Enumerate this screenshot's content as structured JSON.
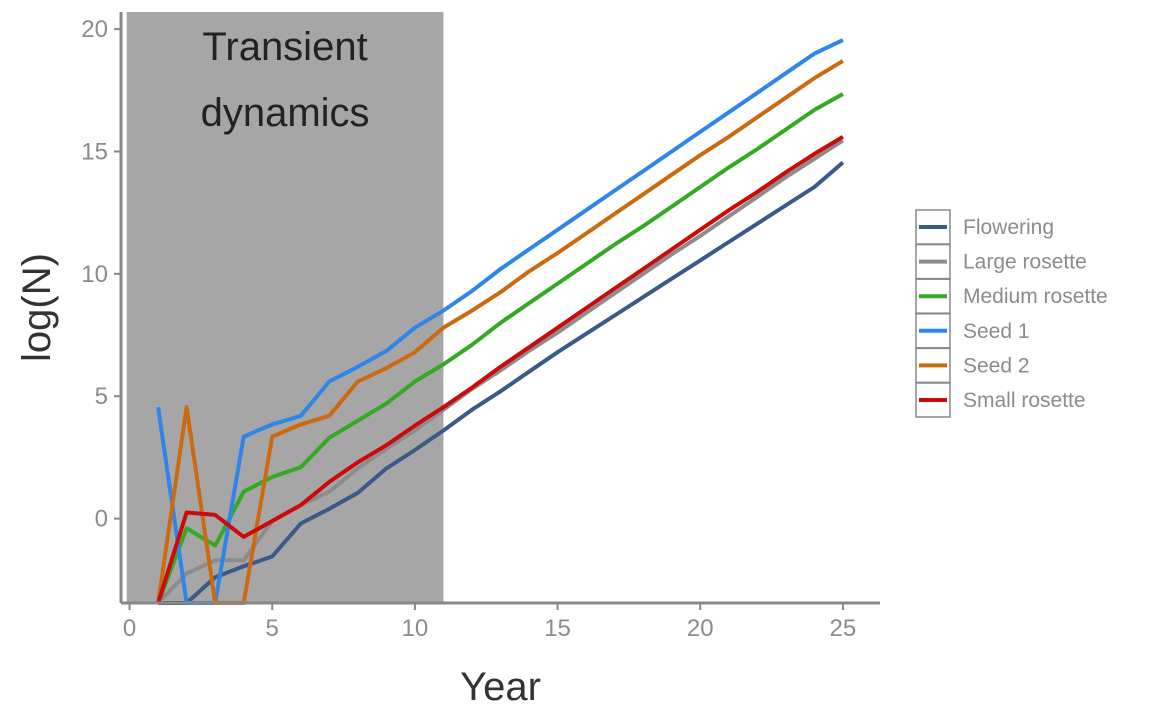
{
  "chart_data": {
    "type": "line",
    "title": "",
    "xlabel": "Year",
    "ylabel": "log(N)",
    "xlim": [
      -0.3,
      26.3
    ],
    "ylim": [
      -3.45,
      20.7
    ],
    "xticks": [
      0,
      5,
      10,
      15,
      20,
      25
    ],
    "yticks": [
      0,
      5,
      10,
      15,
      20
    ],
    "grid": false,
    "legend_position": "right",
    "annotation": {
      "lines": [
        "Transient",
        "dynamics"
      ],
      "x_range": [
        -0.1,
        11
      ],
      "fill": "#a6a6a6"
    },
    "x": [
      1,
      2,
      3,
      4,
      5,
      6,
      7,
      8,
      9,
      10,
      11,
      12,
      13,
      14,
      15,
      16,
      17,
      18,
      19,
      20,
      21,
      22,
      23,
      24,
      25
    ],
    "series": [
      {
        "name": "Flowering",
        "color": "#3a5a89",
        "values": [
          -3.45,
          -3.45,
          -2.4,
          -1.95,
          -1.55,
          -0.2,
          0.4,
          1.05,
          2.05,
          2.8,
          3.6,
          4.45,
          5.2,
          6.0,
          6.8,
          7.55,
          8.3,
          9.05,
          9.8,
          10.55,
          11.3,
          12.05,
          12.8,
          13.55,
          14.55
        ]
      },
      {
        "name": "Large rosette",
        "color": "#8c8c8c",
        "values": [
          -3.45,
          -2.25,
          -1.7,
          -1.7,
          -0.1,
          0.55,
          1.1,
          2.05,
          2.85,
          3.6,
          4.45,
          5.3,
          6.05,
          6.85,
          7.6,
          8.4,
          9.2,
          10.0,
          10.8,
          11.55,
          12.35,
          13.15,
          13.95,
          14.7,
          15.45
        ]
      },
      {
        "name": "Medium rosette",
        "color": "#33aa22",
        "values": [
          -3.45,
          -0.4,
          -1.1,
          1.1,
          1.7,
          2.1,
          3.3,
          4.0,
          4.7,
          5.6,
          6.3,
          7.1,
          8.0,
          8.8,
          9.6,
          10.4,
          11.2,
          11.95,
          12.75,
          13.55,
          14.35,
          15.1,
          15.9,
          16.7,
          17.35
        ]
      },
      {
        "name": "Seed 1",
        "color": "#2e86e8",
        "values": [
          4.55,
          -3.45,
          -3.45,
          3.35,
          3.85,
          4.2,
          5.6,
          6.2,
          6.85,
          7.8,
          8.5,
          9.3,
          10.2,
          11.0,
          11.8,
          12.6,
          13.4,
          14.2,
          15.0,
          15.8,
          16.6,
          17.4,
          18.2,
          19.0,
          19.55
        ]
      },
      {
        "name": "Seed 2",
        "color": "#cc6a10",
        "values": [
          -3.45,
          4.55,
          -3.45,
          -3.45,
          3.35,
          3.85,
          4.2,
          5.6,
          6.15,
          6.8,
          7.8,
          8.5,
          9.25,
          10.1,
          10.85,
          11.65,
          12.45,
          13.25,
          14.05,
          14.85,
          15.6,
          16.4,
          17.2,
          18.0,
          18.7
        ]
      },
      {
        "name": "Small rosette",
        "color": "#cc0a0a",
        "values": [
          -3.45,
          0.25,
          0.15,
          -0.75,
          -0.1,
          0.55,
          1.5,
          2.3,
          3.0,
          3.8,
          4.55,
          5.35,
          6.2,
          7.0,
          7.8,
          8.6,
          9.4,
          10.2,
          11.0,
          11.8,
          12.6,
          13.35,
          14.15,
          14.9,
          15.6
        ]
      }
    ]
  }
}
